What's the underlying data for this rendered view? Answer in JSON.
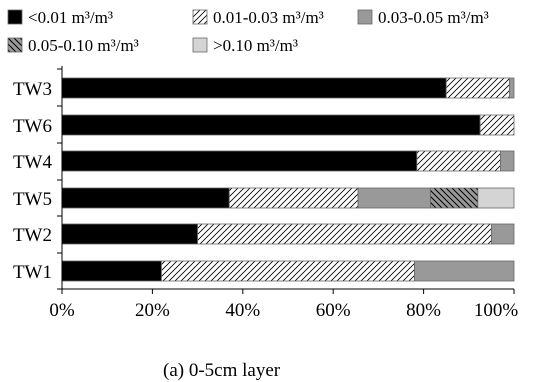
{
  "chart_data": {
    "type": "bar",
    "orientation": "horizontal",
    "stacked": true,
    "caption": "(a) 0-5cm layer",
    "categories": [
      "TW3",
      "TW6",
      "TW4",
      "TW5",
      "TW2",
      "TW1"
    ],
    "series": [
      {
        "name": "<0.01 m³/m³",
        "fill": "solid-black",
        "values": [
          85,
          92.5,
          78.5,
          37,
          30,
          22
        ]
      },
      {
        "name": "0.01-0.03 m³/m³",
        "fill": "diagonal-hatch",
        "values": [
          14,
          7.5,
          18.5,
          28.5,
          65,
          56
        ]
      },
      {
        "name": "0.03-0.05 m³/m³",
        "fill": "solid-gray",
        "values": [
          1,
          0,
          3,
          16,
          5,
          22
        ]
      },
      {
        "name": "0.05-0.10 m³/m³",
        "fill": "reverse-hatch",
        "values": [
          0,
          0,
          0,
          10.5,
          0,
          0
        ]
      },
      {
        "name": ">0.10 m³/m³",
        "fill": "light-gray",
        "values": [
          0,
          0,
          0,
          8,
          0,
          0
        ]
      }
    ],
    "x_ticks": [
      "0%",
      "20%",
      "40%",
      "60%",
      "80%",
      "100%"
    ],
    "xlim": [
      0,
      100
    ],
    "legend_position": "top",
    "grid": false
  },
  "colors": {
    "solid_black": "#000000",
    "solid_gray": "#999999",
    "light_gray": "#d4d4d4",
    "axis": "#000000"
  }
}
